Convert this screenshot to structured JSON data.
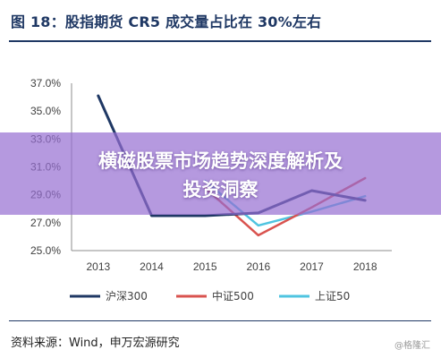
{
  "figure": {
    "title": "图 18：股指期货 CR5 成交量占比在 30%左右",
    "source": "资料来源：Wind，申万宏源研究",
    "watermark": "@格隆汇"
  },
  "banner": {
    "line1": "横磁股票市场趋势深度解析及",
    "line2": "投资洞察"
  },
  "chart_data": {
    "type": "line",
    "title": "图 18：股指期货 CR5 成交量占比在 30%左右",
    "x": [
      "2013",
      "2014",
      "2015",
      "2016",
      "2017",
      "2018"
    ],
    "ylim": [
      25.0,
      37.0
    ],
    "yticks": [
      "25.0%",
      "27.0%",
      "29.0%",
      "31.0%",
      "33.0%",
      "35.0%",
      "37.0%"
    ],
    "grid": false,
    "legend_position": "bottom",
    "series": [
      {
        "name": "沪深300",
        "color": "#1f3864",
        "values": [
          36.1,
          27.5,
          27.5,
          27.7,
          29.3,
          28.6
        ]
      },
      {
        "name": "中证500",
        "color": "#d9534f",
        "values": [
          null,
          null,
          29.5,
          26.1,
          28.1,
          30.2
        ]
      },
      {
        "name": "上证50",
        "color": "#4fc4e0",
        "values": [
          null,
          null,
          30.0,
          26.8,
          27.8,
          28.9
        ]
      }
    ]
  }
}
